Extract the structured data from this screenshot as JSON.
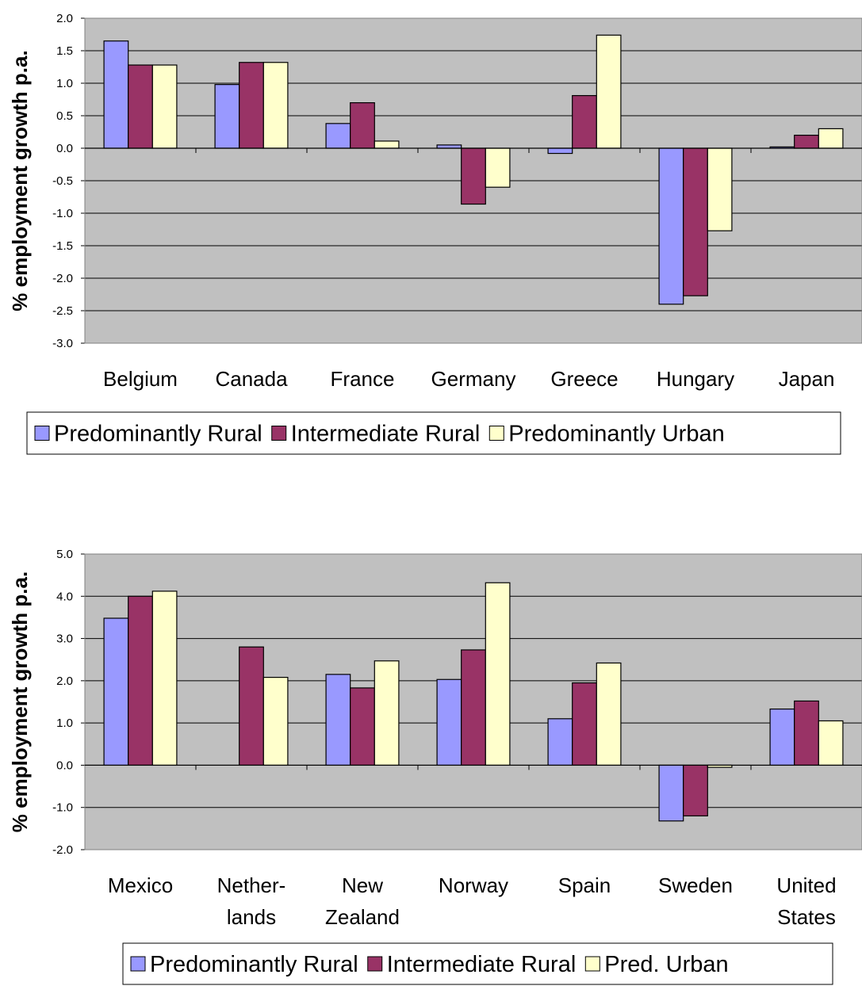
{
  "chart_data": [
    {
      "type": "bar",
      "ylabel": "% employment growth p.a.",
      "ylim": [
        -3.0,
        2.0
      ],
      "ytick_step": 0.5,
      "grid": true,
      "legend_position": "bottom",
      "categories": [
        [
          "Belgium"
        ],
        [
          "Canada"
        ],
        [
          "France"
        ],
        [
          "Germany"
        ],
        [
          "Greece"
        ],
        [
          "Hungary"
        ],
        [
          "Japan"
        ]
      ],
      "series": [
        {
          "name": "Predominantly Rural",
          "color": "#9999FF",
          "values": [
            1.65,
            0.98,
            0.38,
            0.05,
            -0.08,
            -2.4,
            0.02
          ]
        },
        {
          "name": "Intermediate Rural",
          "color": "#993366",
          "values": [
            1.28,
            1.32,
            0.7,
            -0.86,
            0.81,
            -2.27,
            0.2
          ]
        },
        {
          "name": "Predominantly Urban",
          "color": "#FFFFCC",
          "values": [
            1.28,
            1.32,
            0.11,
            -0.6,
            1.74,
            -1.27,
            0.3
          ]
        }
      ]
    },
    {
      "type": "bar",
      "ylabel": "% employment growth p.a.",
      "ylim": [
        -2.0,
        5.0
      ],
      "ytick_step": 1.0,
      "grid": true,
      "legend_position": "bottom",
      "categories": [
        [
          "Mexico"
        ],
        [
          "Nether-",
          "lands"
        ],
        [
          "New",
          "Zealand"
        ],
        [
          "Norway"
        ],
        [
          "Spain"
        ],
        [
          "Sweden"
        ],
        [
          "United",
          "States"
        ]
      ],
      "series": [
        {
          "name": "Predominantly Rural",
          "color": "#9999FF",
          "values": [
            3.48,
            null,
            2.15,
            2.03,
            1.1,
            -1.32,
            1.33
          ]
        },
        {
          "name": "Intermediate Rural",
          "color": "#993366",
          "values": [
            4.0,
            2.8,
            1.83,
            2.73,
            1.95,
            -1.2,
            1.52
          ]
        },
        {
          "name": "Pred. Urban",
          "color": "#FFFFCC",
          "values": [
            4.12,
            2.08,
            2.47,
            4.32,
            2.42,
            -0.05,
            1.05
          ]
        }
      ]
    }
  ]
}
